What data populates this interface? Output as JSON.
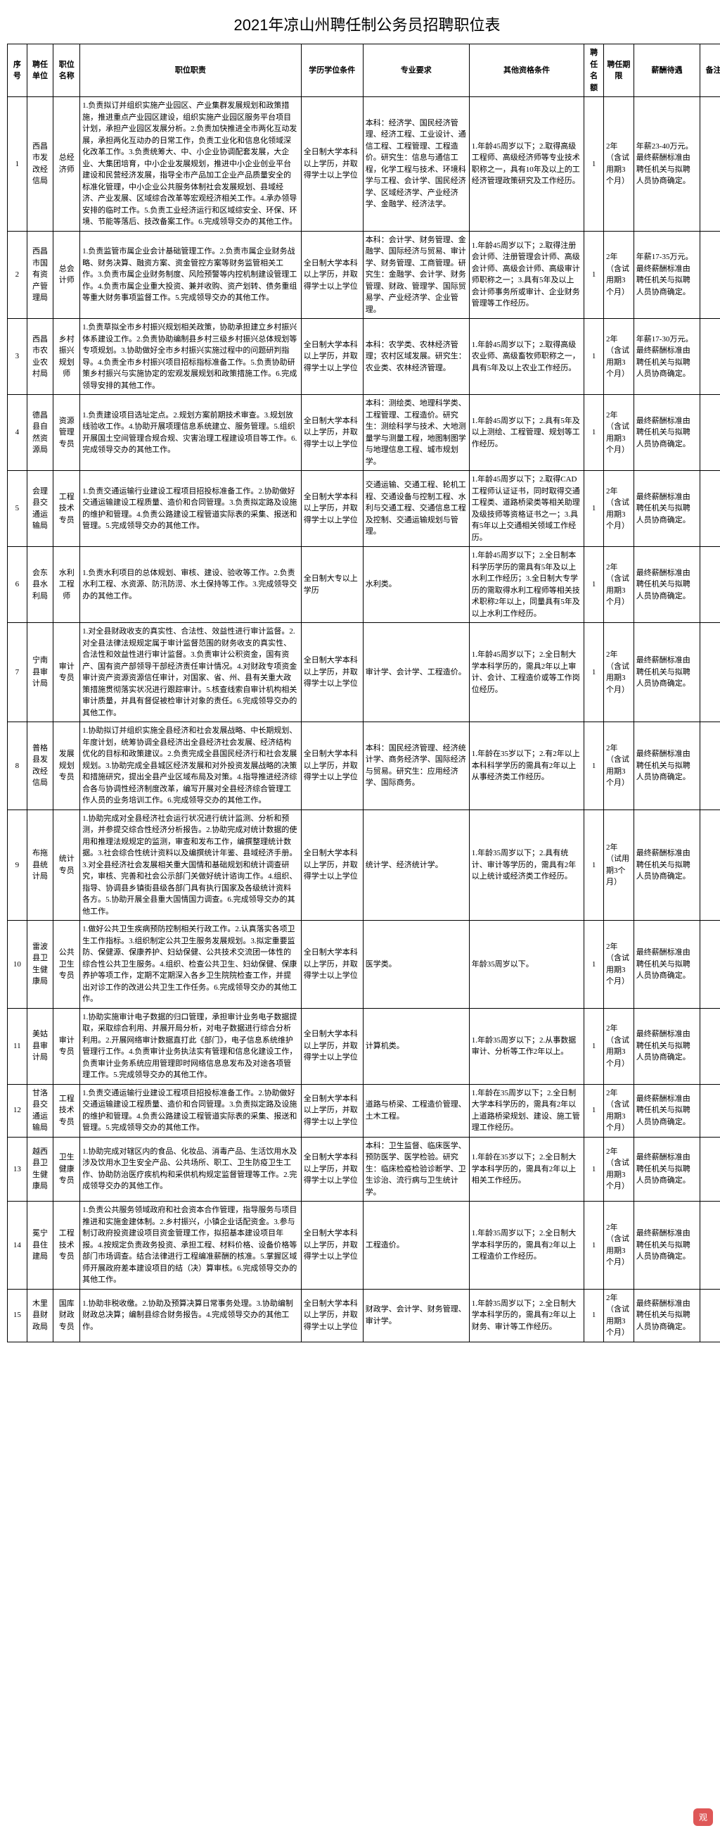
{
  "title": "2021年凉山州聘任制公务员招聘职位表",
  "headers": {
    "seq": "序号",
    "unit": "聘任单位",
    "posname": "职位名称",
    "duty": "职位职责",
    "edu": "学历学位条件",
    "major": "专业要求",
    "other": "其他资格条件",
    "quota": "聘任名额",
    "term": "聘任期限",
    "salary": "薪酬待遇",
    "remark": "备注"
  },
  "rows": [
    {
      "seq": "1",
      "unit": "西昌市发改经信局",
      "posname": "总经济师",
      "duty": "1.负责拟订并组织实施产业园区、产业集群发展规划和政策措施，推进重点产业园区建设，组织实施产业园区服务平台项目计划，承担产业园区发展分析。2.负责加快推进全市两化互动发展，承担两化互动办的日常工作，负责工业化和信息化领域深化改革工作。3.负责统筹大、中、小企业协调配套发展，大企业、大集团培育，中小企业发展规划，推进中小企业创业平台建设和民营经济发展，指导全市产品加工企业产品质量安全的标准化管理，中小企业公共服务体制社会发展规划、县域经济、产业发展、区域综合改革等宏观经济相关工作。4.承办领导安排的临时工作。5.负责工业经济运行和区域综安全、环保、环境、节能等落后、技改备案工作。6.完成领导交办的其他工作。",
      "edu": "全日制大学本科以上学历，并取得学士以上学位",
      "major": "本科：经济学、国民经济管理、经济工程、工业设计、通信工程、工程管理、工程造价。研究生：信息与通信工程，化学工程与技术、环境科学与工程、会计学、国民经济学、区域经济学、产业经济学、金融学、经济法学。",
      "other": "1.年龄45周岁以下；2.取得高级工程师、高级经济师等专业技术职称之一，具有10年及以上的工经济管理政策研究及工作经历。",
      "quota": "1",
      "term": "2年（含试用期3个月）",
      "salary": "年薪23-40万元。最终薪酬标准由聘任机关与拟聘人员协商确定。",
      "remark": ""
    },
    {
      "seq": "2",
      "unit": "西昌市国有资产管理局",
      "posname": "总会计师",
      "duty": "1.负责监管市属企业会计基础管理工作。2.负责市属企业财务战略、财务决算、融资方案、资金管控方案等财务监管相关工作。3.负责市属企业财务制度、风险预警等内控机制建设管理工作。4.负责市属企业重大投资、兼并收购、资产划转、债务重组等重大财务事项监督工作。5.完成领导交办的其他工作。",
      "edu": "全日制大学本科以上学历，并取得学士以上学位",
      "major": "本科：会计学、财务管理、金融学、国际经济与贸易、审计学、财务管理、工商管理。研究生：金融学、会计学、财务管理、财政、管理学、国际贸易学、产业经济学、企业管理。",
      "other": "1.年龄45周岁以下；2.取得注册会计师、注册管理会计师、高级会计师、高级会计师、高级审计师职称之一；3.具有5年及以上会计师事务所或审计、企业财务管理等工作经历。",
      "quota": "1",
      "term": "2年（含试用期3个月）",
      "salary": "年薪17-35万元。最终薪酬标准由聘任机关与拟聘人员协商确定。",
      "remark": ""
    },
    {
      "seq": "3",
      "unit": "西昌市农业农村局",
      "posname": "乡村振兴规划师",
      "duty": "1.负责草拟全市乡村振兴规划相关政策，协助承担建立乡村振兴体系建设工作。2.负责协助编制县乡村三级乡村振兴总体规划等专项规划。3.协助做好全市乡村振兴实施过程中的问题研判指导。4.负责全市乡村振兴项目招标指标准备工作。5.负责协助研策乡村振兴与实施协定的宏观发展规划和政策措施工作。6.完成领导安排的其他工作。",
      "edu": "全日制大学本科以上学历，并取得学士以上学位",
      "major": "本科：农学类、农林经济管理；农村区域发展。研究生：农业类、农林经济管理。",
      "other": "1.年龄45周岁以下；2.取得高级农业师、高级畜牧师职称之一，具有5年及以上农业工作经历。",
      "quota": "1",
      "term": "2年（含试用期3个月）",
      "salary": "年薪17-30万元。最终薪酬标准由聘任机关与拟聘人员协商确定。",
      "remark": ""
    },
    {
      "seq": "4",
      "unit": "德昌县自然资源局",
      "posname": "资源管理专员",
      "duty": "1.负责建设项目选址定点。2.规划方案前期技术审查。3.规划放线验收工作。4.协助开展项理信息系统建立、服务管理。5.组织开展国土空间管理合规合规、灾害治理工程建设项目等工作。6.完成领导交办的其他工作。",
      "edu": "全日制大学本科以上学历，并取得学士以上学位",
      "major": "本科：测绘类、地理科学类、工程管理、工程造价。研究生：测绘科学与技术、大地测量学与测量工程，地图制图学与地理信息工程、城市规划学。",
      "other": "1.年龄45周岁以下；2.具有5年及以上测绘、工程管理、规划等工作经历。",
      "quota": "1",
      "term": "2年（含试用期3个月）",
      "salary": "最终薪酬标准由聘任机关与拟聘人员协商确定。",
      "remark": ""
    },
    {
      "seq": "5",
      "unit": "会理县交通运输局",
      "posname": "工程技术专员",
      "duty": "1.负责交通运输行业建设工程项目招投标准备工作。2.协助做好交通运输建设工程质量、造价和合同管理。3.负责拟定路及设施的维护和管理。4.负责公路建设工程管道实际表的采集、报送和管理。5.完成领导交办的其他工作。",
      "edu": "全日制大学本科以上学历，并取得学士以上学位",
      "major": "交通运输、交通工程、轮机工程、交通设备与控制工程、水利与交通工程、交通信息工程及控制、交通运输规划与管理。",
      "other": "1.年龄45周岁以下；2.取得CAD工程师认证证书，同时取得交通工程类、道路桥梁类等相关助理及级技师等资格证书之一；3.具有5年以上交通相关领域工作经历。",
      "quota": "1",
      "term": "2年（含试用期3个月）",
      "salary": "最终薪酬标准由聘任机关与拟聘人员协商确定。",
      "remark": ""
    },
    {
      "seq": "6",
      "unit": "会东县水利局",
      "posname": "水利工程师",
      "duty": "1.负责水利项目的总体规划、审核、建设、验收等工作。2.负责水利工程、水资源、防汛防涝、水土保持等工作。3.完成领导交办的其他工作。",
      "edu": "全日制大专以上学历",
      "major": "水利类。",
      "other": "1.年龄45周岁以下；2.全日制本科学历学历的需具有5年及以上水利工作经历；3.全日制大专学历的需取得水利工程师等相关技术职称2年以上，同量具有5年及以上水利工作经历。",
      "quota": "1",
      "term": "2年（含试用期3个月）",
      "salary": "最终薪酬标准由聘任机关与拟聘人员协商确定。",
      "remark": ""
    },
    {
      "seq": "7",
      "unit": "宁南县审计局",
      "posname": "审计专员",
      "duty": "1.对全县财政收支的真实性、合法性、效益性进行审计监督。2.对全县法律法规规定属于审计监督范围的财务收支的真实性、合法性和效益性进行审计监督。3.负责审计公积资金，国有资产、国有资产部领导干部经济责任审计情况。4.对财政专项资金审计资产资源资源信任审计，对国家、省、州、县有关重大政策措施贯彻落实状况进行跟踪审计。5.核查线索自审计机构相关审计质量，并具有督促被检审计对象的责任。6.完成领导交办的其他工作。",
      "edu": "全日制大学本科以上学历，并取得学士以上学位",
      "major": "审计学、会计学、工程造价。",
      "other": "1.年龄45周岁以下；2.全日制大学本科学历的，需具2年以上审计、会计、工程造价或等工作岗位经历。",
      "quota": "1",
      "term": "2年（含试用期3个月）",
      "salary": "最终薪酬标准由聘任机关与拟聘人员协商确定。",
      "remark": ""
    },
    {
      "seq": "8",
      "unit": "普格县发改经信局",
      "posname": "发展规划专员",
      "duty": "1.协助拟订并组织实施全县经济和社会发展战略、中长期规划、年度计划，统筹协调全县经济出全县经济社会发展、经济结构优化的目标和政策建议。2.负责完成全县国民经济行和社会发展规划。3.协助完成全县城区经济发展和对外投资发展战略的决策和措施研究，提出全县产业区域布局及对策。4.指导推进经济综合各与协调性经济制度改革，编写开展对全县经济综合管理工作人员的业务培训工作。6.完成领导交办的其他工作。",
      "edu": "全日制大学本科以上学历，并取得学士以上学位",
      "major": "本科：国民经济管理、经济统计学、商务经济学、国际经济与贸易。研究生：应用经济学、国际商务。",
      "other": "1.年龄在35岁以下；2.有2年以上本科科学学历的需具有2年以上从事经济类工作经历。",
      "quota": "1",
      "term": "2年（含试用期3个月）",
      "salary": "最终薪酬标准由聘任机关与拟聘人员协商确定。",
      "remark": ""
    },
    {
      "seq": "9",
      "unit": "布拖县统计局",
      "posname": "统计专员",
      "duty": "1.协助完成对全县经济社会运行状况进行统计监测、分析和预测，并参提交综合性经济分析报告。2.协助完成对统计数据的使用和推理法规规定的监测，审查和发布工作，编撰整理统计数据。3.社会综合性统计资料以及编撰统计年鉴、县域经济手册。3.对全县经济社会发展相关重大国情和基础规划和统计调查研究，审核、完善和社会公示部门关做好统计谘询工作。4.组织、指导、协调县乡镇街县级各部门具有执行国家及各级统计资料各方。5.协助开展全县重大国情国力调查。6.完成领导交办的其他工作。",
      "edu": "全日制大学本科以上学历，并取得学士以上学位",
      "major": "统计学、经济统计学。",
      "other": "1.年龄35周岁以下；2.具有统计、审计等学历的，需具有2年以上统计或经济类工作经历。",
      "quota": "1",
      "term": "2年（试用期3个月）",
      "salary": "最终薪酬标准由聘任机关与拟聘人员协商确定。",
      "remark": ""
    },
    {
      "seq": "10",
      "unit": "雷波县卫生健康局",
      "posname": "公共卫生专员",
      "duty": "1.做好公共卫生疾病预防控制相关行政工作。2.认真落实各项卫生工作指标。3.组织制定公共卫生服务发展规划。3.拟定重要监防、保健源、保康养护、妇幼保健、公共技术交流团一体性的综合性公共卫生服务。4.组织、检查公共卫生、妇幼保健、保康养护等项工作，定期不定期深入各乡卫生院院检查工作，并提出对诊工作的改进公共卫生工作任务。6.完成领导交办的其他工作。",
      "edu": "全日制大学本科以上学历，并取得学士以上学位",
      "major": "医学类。",
      "other": "年龄35周岁以下。",
      "quota": "1",
      "term": "2年（含试用期3个月）",
      "salary": "最终薪酬标准由聘任机关与拟聘人员协商确定。",
      "remark": ""
    },
    {
      "seq": "11",
      "unit": "美姑县审计局",
      "posname": "审计专员",
      "duty": "1.协助实施审计电子数据的归口管理，承担审计业务电子数据提取，采取综合利用、并展开局分析，对电子数据进行综合分析利用。2.开展网络审计数据直打此《部门》，电子信息系统维护管理行工作。4.负责审计业务执法实有管理和信息化建设工作，负责审计业务系统应用管理即时网络信息息发布及对途各项管理工作。5.完成领导交办的其他工作。",
      "edu": "全日制大学本科以上学历，并取得学士以上学位",
      "major": "计算机类。",
      "other": "1.年龄35周岁以下；2.从事数据审计、分析等工作2年以上。",
      "quota": "1",
      "term": "2年（含试用期3个月）",
      "salary": "最终薪酬标准由聘任机关与拟聘人员协商确定。",
      "remark": ""
    },
    {
      "seq": "12",
      "unit": "甘洛县交通运输局",
      "posname": "工程技术专员",
      "duty": "1.负责交通运输行业建设工程项目招投标准备工作。2.协助做好交通运输建设工程质量、造价和合同管理。3.负责拟定路及设施的维护和管理。4.负责公路建设工程管道实际表的采集、报送和管理。5.完成领导交办的其他工作。",
      "edu": "全日制大学本科以上学历，并取得学士以上学位",
      "major": "道路与桥梁、工程造价管理、土木工程。",
      "other": "1.年龄在35周岁以下；2.全日制大学本科学历的，需具有2年以上道路桥梁规划、建设、施工管理工作经历。",
      "quota": "1",
      "term": "2年（含试用期3个月）",
      "salary": "最终薪酬标准由聘任机关与拟聘人员协商确定。",
      "remark": ""
    },
    {
      "seq": "13",
      "unit": "越西县卫生健康局",
      "posname": "卫生健康专员",
      "duty": "1.协助完成对辖区内的食品、化妆品、消毒产品、生活饮用水及涉及饮用水卫生安全产品、公共场所、职工、卫生防疫卫生工作、协助防治医疗疾机构和采供机构规定监督管理等工作。2.完成领导交办的其他工作。",
      "edu": "全日制大学本科以上学历，并取得学士以上学位",
      "major": "本科：卫生监督、临床医学、预防医学、医学检验。研究生：临床检疫检验诊断学、卫生诊治、流行病与卫生统计学。",
      "other": "1.年龄在35岁以下；2.全日制大学本科学历的，需具有2年以上相关工作经历。",
      "quota": "1",
      "term": "2年（含试用期3个月）",
      "salary": "最终薪酬标准由聘任机关与拟聘人员协商确定。",
      "remark": ""
    },
    {
      "seq": "14",
      "unit": "冕宁县住建局",
      "posname": "工程技术专员",
      "duty": "1.负责公共服务领域政府和社会资本合作管理，指导服务与项目推进和实施金建体制。2.乡村振兴，小镇企业话配资金。3.参与制订政府投资建设项目资金管理工作，拟招基本建设项目年报。4.按规定负责政务投资、承担工程、材料价格、设备价格等部门市场调查。结合法律进行工程编准薪酬的核准。5.掌握区域师开展政府差本建设项目的结（决）算审核。6.完成领导交办的其他工作。",
      "edu": "全日制大学本科以上学历，并取得学士以上学位",
      "major": "工程造价。",
      "other": "1.年龄35周岁以下；2.全日制大学本科学历的，需具有2年以上工程造价工作经历。",
      "quota": "1",
      "term": "2年（含试用期3个月）",
      "salary": "最终薪酬标准由聘任机关与拟聘人员协商确定。",
      "remark": ""
    },
    {
      "seq": "15",
      "unit": "木里县财政局",
      "posname": "国库财政专员",
      "duty": "1.协助非税收缴。2.协助及预算决算日常事务处理。3.协助编制财政总决算；编制县综合财务报告。4.完成领导交办的其他工作。",
      "edu": "全日制大学本科以上学历，并取得学士以上学位",
      "major": "财政学、会计学、财务管理、审计学。",
      "other": "1.年龄35周岁以下；2.全日制大学本科学历的，需具有2年以上财务、审计等工作经历。",
      "quota": "1",
      "term": "2年（含试用期3个月）",
      "salary": "最终薪酬标准由聘任机关与拟聘人员协商确定。",
      "remark": ""
    }
  ],
  "watermark": "观"
}
